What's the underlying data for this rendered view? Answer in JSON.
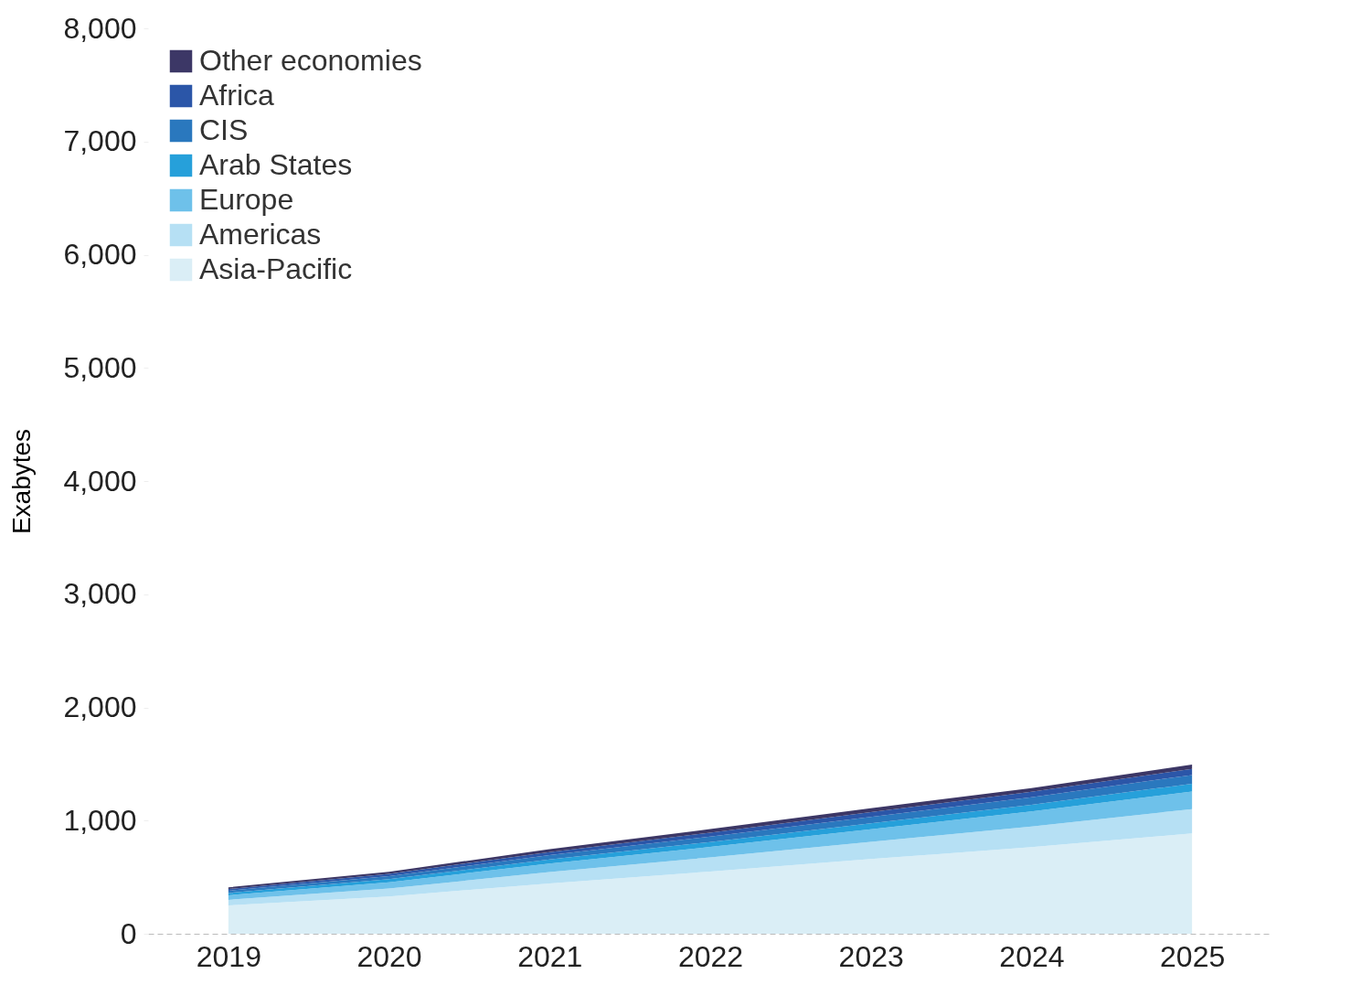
{
  "chart_data": {
    "type": "area",
    "stacked": true,
    "ylabel": "Exabytes",
    "categories": [
      "2019",
      "2020",
      "2021",
      "2022",
      "2023",
      "2024",
      "2025"
    ],
    "series": [
      {
        "name": "Asia-Pacific",
        "color": "#daeef6",
        "values": [
          250,
          330,
          445,
          550,
          660,
          765,
          886
        ]
      },
      {
        "name": "Americas",
        "color": "#b6e0f4",
        "values": [
          50,
          70,
          100,
          125,
          152,
          182,
          216
        ]
      },
      {
        "name": "Europe",
        "color": "#6ec1ea",
        "values": [
          40,
          55,
          75,
          92,
          112,
          133,
          154
        ]
      },
      {
        "name": "Arab States",
        "color": "#26a0da",
        "values": [
          20,
          27,
          36,
          44,
          52,
          60,
          70
        ]
      },
      {
        "name": "CIS",
        "color": "#2a78be",
        "values": [
          20,
          27,
          38,
          47,
          56,
          66,
          77
        ]
      },
      {
        "name": "Africa",
        "color": "#2b56a8",
        "values": [
          15,
          20,
          28,
          35,
          42,
          48,
          54
        ]
      },
      {
        "name": "Other economies",
        "color": "#3c3766",
        "values": [
          15,
          18,
          26,
          32,
          36,
          33,
          38
        ]
      }
    ],
    "ylim": [
      0,
      8000
    ],
    "yticks": [
      0,
      {
        "value": 1000,
        "label": "1,000"
      },
      {
        "value": 2000,
        "label": "2,000"
      },
      {
        "value": 3000,
        "label": "3,000"
      },
      {
        "value": 4000,
        "label": "4,000"
      },
      {
        "value": 5000,
        "label": "5,000"
      },
      {
        "value": 6000,
        "label": "6,000"
      },
      {
        "value": 7000,
        "label": "7,000"
      },
      {
        "value": 8000,
        "label": "8,000"
      }
    ],
    "grid": false,
    "legend": "top left"
  }
}
